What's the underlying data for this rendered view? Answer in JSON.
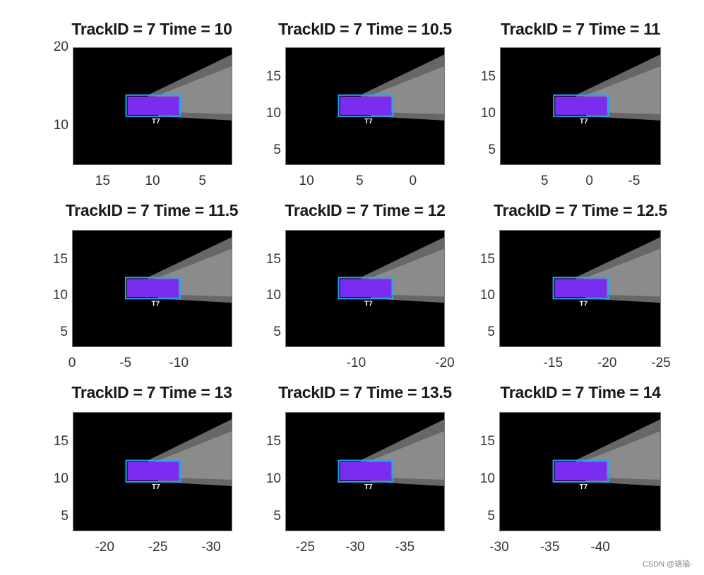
{
  "chart_data": [
    {
      "type": "heatmap",
      "title": "TrackID = 7 Time = 10",
      "track_label": "T7",
      "x_ticks": [
        15,
        10,
        5
      ],
      "y_ticks": [
        20,
        10
      ],
      "xlim": [
        18,
        2
      ],
      "ylim": [
        5,
        20
      ]
    },
    {
      "type": "heatmap",
      "title": "TrackID = 7 Time = 10.5",
      "track_label": "T7",
      "x_ticks": [
        10,
        5,
        0
      ],
      "y_ticks": [
        15,
        10,
        5
      ],
      "xlim": [
        12,
        -3
      ],
      "ylim": [
        3,
        19
      ]
    },
    {
      "type": "heatmap",
      "title": "TrackID = 7 Time = 11",
      "track_label": "T7",
      "x_ticks": [
        5,
        0,
        -5
      ],
      "y_ticks": [
        15,
        10,
        5
      ],
      "xlim": [
        10,
        -8
      ],
      "ylim": [
        3,
        19
      ]
    },
    {
      "type": "heatmap",
      "title": "TrackID = 7 Time = 11.5",
      "track_label": "T7",
      "x_ticks": [
        0,
        -5,
        -10
      ],
      "y_ticks": [
        15,
        10,
        5
      ],
      "xlim": [
        0,
        -15
      ],
      "ylim": [
        3,
        19
      ]
    },
    {
      "type": "heatmap",
      "title": "TrackID = 7 Time = 12",
      "track_label": "T7",
      "x_ticks": [
        -10,
        -20
      ],
      "y_ticks": [
        15,
        10,
        5
      ],
      "xlim": [
        -2,
        -20
      ],
      "ylim": [
        3,
        19
      ]
    },
    {
      "type": "heatmap",
      "title": "TrackID = 7 Time = 12.5",
      "track_label": "T7",
      "x_ticks": [
        -15,
        -20,
        -25
      ],
      "y_ticks": [
        15,
        10,
        5
      ],
      "xlim": [
        -10,
        -25
      ],
      "ylim": [
        3,
        19
      ]
    },
    {
      "type": "heatmap",
      "title": "TrackID = 7 Time = 13",
      "track_label": "T7",
      "x_ticks": [
        -20,
        -25,
        -30
      ],
      "y_ticks": [
        15,
        10,
        5
      ],
      "xlim": [
        -17,
        -32
      ],
      "ylim": [
        3,
        19
      ]
    },
    {
      "type": "heatmap",
      "title": "TrackID = 7 Time = 13.5",
      "track_label": "T7",
      "x_ticks": [
        -25,
        -30,
        -35
      ],
      "y_ticks": [
        15,
        10,
        5
      ],
      "xlim": [
        -23,
        -39
      ],
      "ylim": [
        3,
        19
      ]
    },
    {
      "type": "heatmap",
      "title": "TrackID = 7 Time = 14",
      "track_label": "T7",
      "x_ticks": [
        -30,
        -35,
        -40
      ],
      "y_ticks": [
        15,
        10,
        5
      ],
      "xlim": [
        -30,
        -46
      ],
      "ylim": [
        3,
        19
      ]
    }
  ],
  "colors": {
    "box": "#1ea8f0",
    "fill": "#7a2cf0",
    "background": "#000000",
    "cone": "#8a8a8a"
  },
  "watermark": "CSDN @珞瑜·"
}
